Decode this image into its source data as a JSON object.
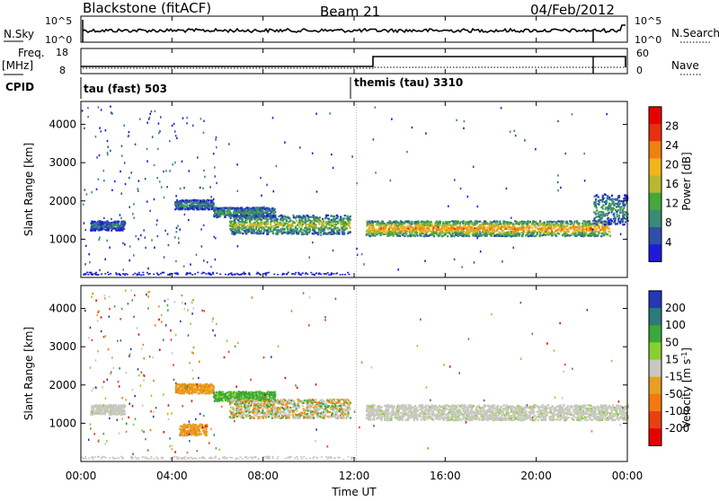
{
  "header": {
    "title": "Blackstone (fitACF)",
    "beam": "Beam 21",
    "date": "04/Feb/2012"
  },
  "nsky_panel": {
    "left_label": "N.Sky",
    "left_ticks": [
      "10^5",
      "10^0"
    ],
    "right_label": "N.Search",
    "right_ticks": [
      "10^5",
      "10^0"
    ]
  },
  "freq_panel": {
    "left_label_1": "Freq.",
    "left_label_2": "[MHz]",
    "left_ticks": [
      "18",
      "8"
    ],
    "right_label": "Nave",
    "right_ticks": [
      "60",
      "0"
    ]
  },
  "cpid_panel": {
    "label": "CPID",
    "modes": [
      {
        "name": "tau (fast) 503",
        "start_hour": 0
      },
      {
        "name": "themis (tau) 3310",
        "start_hour": 12.1
      }
    ]
  },
  "x_axis": {
    "label": "Time UT",
    "ticks": [
      "00:00",
      "04:00",
      "08:00",
      "12:00",
      "16:00",
      "20:00",
      "00:00"
    ],
    "hours": [
      0,
      4,
      8,
      12,
      16,
      20,
      24
    ]
  },
  "chart_data": [
    {
      "type": "heatmap",
      "name": "power",
      "ylabel": "Slant Range [km]",
      "yticks": [
        1000,
        2000,
        3000,
        4000
      ],
      "ylim": [
        0,
        4600
      ],
      "xlim_hours": [
        0,
        24
      ],
      "colorbar_label": "Power [dB]",
      "colorbar_ticks": [
        "28",
        "24",
        "20",
        "16",
        "12",
        "8",
        "4"
      ],
      "colors": [
        "#1c1cd8",
        "#2f4fa8",
        "#3a8a78",
        "#44a83a",
        "#b8b830",
        "#f2b418",
        "#f08010",
        "#e83010",
        "#e80000"
      ],
      "bands": [
        {
          "t": [
            0.4,
            1.9
          ],
          "range_km": [
            1250,
            1500
          ],
          "level": 0.25
        },
        {
          "t": [
            4.1,
            5.8
          ],
          "range_km": [
            1800,
            2050
          ],
          "level": 0.3
        },
        {
          "t": [
            5.8,
            8.5
          ],
          "range_km": [
            1600,
            1850
          ],
          "level": 0.35
        },
        {
          "t": [
            6.5,
            11.8
          ],
          "range_km": [
            1150,
            1650
          ],
          "level": 0.5
        },
        {
          "t": [
            12.5,
            23.2
          ],
          "range_km": [
            1100,
            1500
          ],
          "level": 0.72
        },
        {
          "t": [
            22.5,
            24.0
          ],
          "range_km": [
            1400,
            2200
          ],
          "level": 0.35
        }
      ]
    },
    {
      "type": "heatmap",
      "name": "velocity",
      "ylabel": "Slant Range [km]",
      "yticks": [
        1000,
        2000,
        3000,
        4000
      ],
      "ylim": [
        0,
        4600
      ],
      "xlim_hours": [
        0,
        24
      ],
      "colorbar_label": "Velocity [m s^-1]",
      "colorbar_ticks": [
        "200",
        "100",
        "50",
        "15",
        "-15",
        "-50",
        "-100",
        "-200"
      ],
      "colors": [
        "#2438b8",
        "#2d7a7a",
        "#3aa83a",
        "#88d030",
        "#c8c8c0",
        "#e8a020",
        "#f07a10",
        "#e84010",
        "#e80000"
      ],
      "bands": [
        {
          "t": [
            0.4,
            1.9
          ],
          "range_km": [
            1250,
            1500
          ],
          "kind": "gray"
        },
        {
          "t": [
            4.1,
            5.8
          ],
          "range_km": [
            1800,
            2050
          ],
          "kind": "orange"
        },
        {
          "t": [
            4.3,
            5.5
          ],
          "range_km": [
            700,
            1000
          ],
          "kind": "orange"
        },
        {
          "t": [
            5.8,
            8.5
          ],
          "range_km": [
            1600,
            1850
          ],
          "kind": "green"
        },
        {
          "t": [
            6.5,
            11.8
          ],
          "range_km": [
            1150,
            1650
          ],
          "kind": "mixed"
        },
        {
          "t": [
            12.5,
            24.0
          ],
          "range_km": [
            1100,
            1500
          ],
          "kind": "gray"
        }
      ]
    }
  ]
}
